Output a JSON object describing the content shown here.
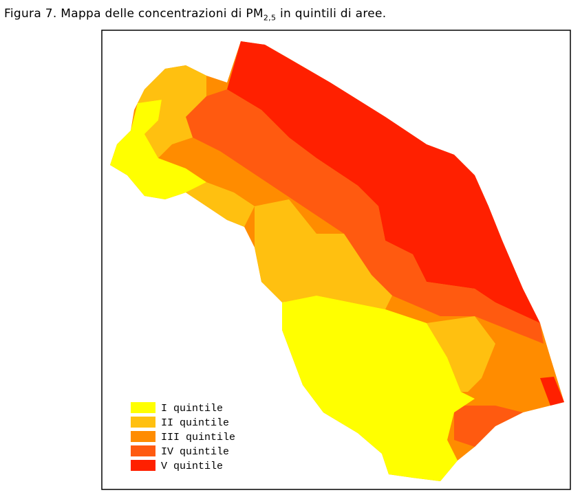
{
  "title": {
    "before": "Figura 7. Mappa delle concentrazioni di PM",
    "subscript": "2,5",
    "after": "in quintili di aree."
  },
  "legend": [
    {
      "label": "I quintile",
      "color": "#ffff00"
    },
    {
      "label": "II quintile",
      "color": "#ffc010"
    },
    {
      "label": "III quintile",
      "color": "#ff8c00"
    },
    {
      "label": "IV quintile",
      "color": "#ff5a10"
    },
    {
      "label": "V quintile",
      "color": "#ff2000"
    }
  ]
}
